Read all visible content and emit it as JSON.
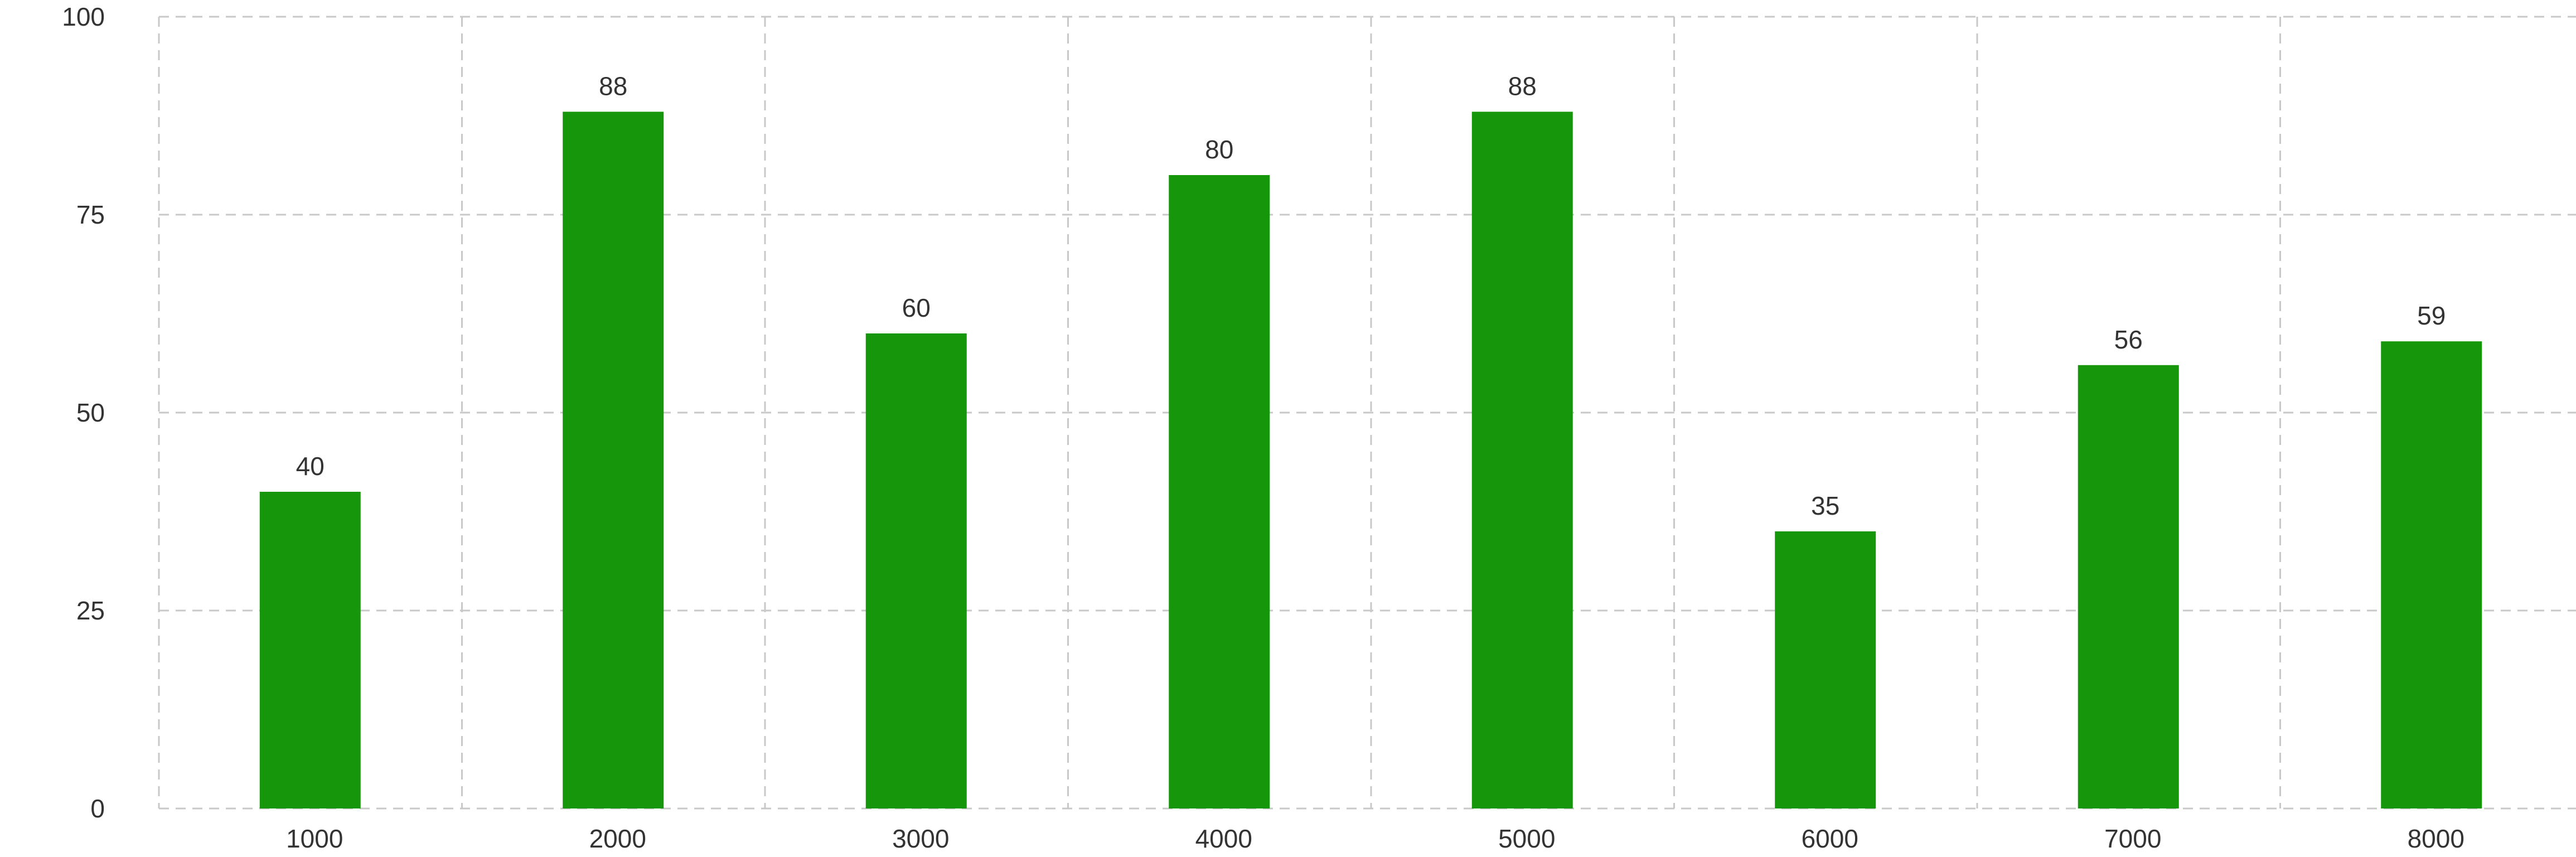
{
  "chart_data": {
    "type": "bar",
    "title": "",
    "xlabel": "",
    "ylabel": "",
    "categories": [
      "1000",
      "2000",
      "3000",
      "4000",
      "5000",
      "6000",
      "7000",
      "8000"
    ],
    "values": [
      40,
      88,
      60,
      80,
      88,
      35,
      56,
      59
    ],
    "ylim": [
      0,
      100
    ],
    "yticks": [
      "0",
      "25",
      "50",
      "75",
      "100"
    ],
    "grid": true,
    "data_labels": true,
    "colors": {
      "bar": "#16960a",
      "grid": "#c8c8c8",
      "text": "#333333"
    }
  }
}
